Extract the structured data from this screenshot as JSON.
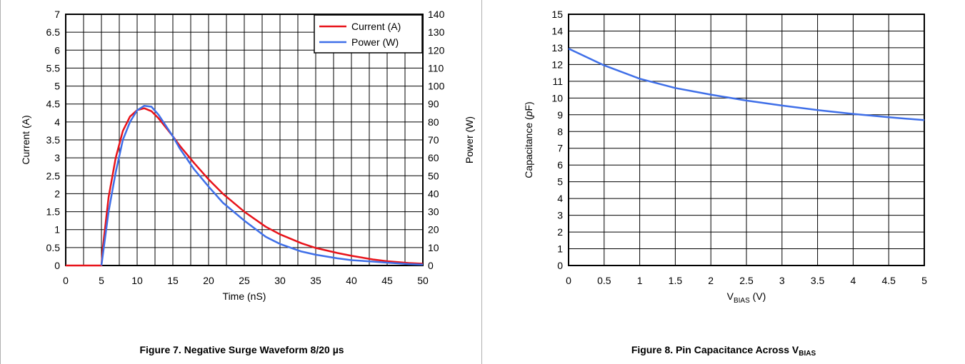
{
  "figures": [
    {
      "caption": "Figure 7. Negative Surge Waveform 8/20 µs"
    },
    {
      "caption_main": "Figure 8. Pin Capacitance Across V",
      "caption_sub": "BIAS"
    }
  ],
  "chart_data": [
    {
      "type": "line",
      "xlabel": "Time (nS)",
      "ylabel": "Current (A)",
      "y2label": "Power (W)",
      "xlim": [
        0,
        50
      ],
      "ylim": [
        0,
        7
      ],
      "y2lim": [
        0,
        140
      ],
      "xticks": [
        "0",
        "5",
        "10",
        "15",
        "20",
        "25",
        "30",
        "35",
        "40",
        "45",
        "50"
      ],
      "yticks": [
        "0",
        "0.5",
        "1",
        "1.5",
        "2",
        "2.5",
        "3",
        "3.5",
        "4",
        "4.5",
        "5",
        "5.5",
        "6",
        "6.5",
        "7"
      ],
      "y2ticks": [
        "0",
        "10",
        "20",
        "30",
        "40",
        "50",
        "60",
        "70",
        "80",
        "90",
        "100",
        "110",
        "120",
        "130",
        "140"
      ],
      "grid": true,
      "legend_position": "top-right",
      "series": [
        {
          "name": "Current (A)",
          "axis": "left",
          "color": "#e8131a",
          "x": [
            0,
            5.0,
            5.2,
            6,
            7,
            8,
            9,
            10,
            11,
            12,
            13,
            14,
            15,
            16,
            18,
            20,
            22,
            25,
            28,
            30,
            33,
            35,
            38,
            40,
            43,
            45,
            48,
            50
          ],
          "y": [
            0,
            0,
            0.5,
            1.9,
            3.0,
            3.75,
            4.15,
            4.33,
            4.38,
            4.3,
            4.1,
            3.85,
            3.6,
            3.33,
            2.85,
            2.4,
            2.0,
            1.5,
            1.08,
            0.87,
            0.62,
            0.49,
            0.35,
            0.27,
            0.17,
            0.12,
            0.07,
            0.05
          ]
        },
        {
          "name": "Power (W)",
          "axis": "right",
          "color": "#3f6fe8",
          "x": [
            5.0,
            5.2,
            6,
            7,
            8,
            9,
            10,
            11,
            12,
            13,
            14,
            15,
            16,
            18,
            20,
            22,
            25,
            28,
            30,
            33,
            35,
            38,
            40,
            43,
            45,
            48,
            50
          ],
          "y": [
            0,
            6,
            30,
            52,
            70,
            80,
            86.5,
            89,
            88.5,
            84,
            78,
            72,
            65,
            53.5,
            44,
            35,
            25,
            16,
            12,
            7.8,
            6,
            4,
            3,
            2.2,
            1.6,
            0.8,
            0.5
          ]
        }
      ]
    },
    {
      "type": "line",
      "xlabel_main": "V",
      "xlabel_sub": "BIAS",
      "xlabel_unit": " (V)",
      "ylabel_main": "Capacitance (",
      "ylabel_italic": "p",
      "ylabel_unit": "F)",
      "xlim": [
        0,
        5
      ],
      "ylim": [
        0,
        15
      ],
      "xticks": [
        "0",
        "0.5",
        "1",
        "1.5",
        "2",
        "2.5",
        "3",
        "3.5",
        "4",
        "4.5",
        "5"
      ],
      "yticks": [
        "0",
        "1",
        "2",
        "3",
        "4",
        "5",
        "6",
        "7",
        "8",
        "9",
        "10",
        "11",
        "12",
        "13",
        "14",
        "15"
      ],
      "grid": true,
      "series": [
        {
          "color": "#3f6fe8",
          "x": [
            0,
            0.5,
            1,
            1.5,
            2,
            2.5,
            3,
            3.5,
            4,
            4.5,
            5
          ],
          "y": [
            12.95,
            11.95,
            11.15,
            10.6,
            10.2,
            9.85,
            9.55,
            9.28,
            9.05,
            8.85,
            8.68
          ]
        }
      ]
    }
  ]
}
